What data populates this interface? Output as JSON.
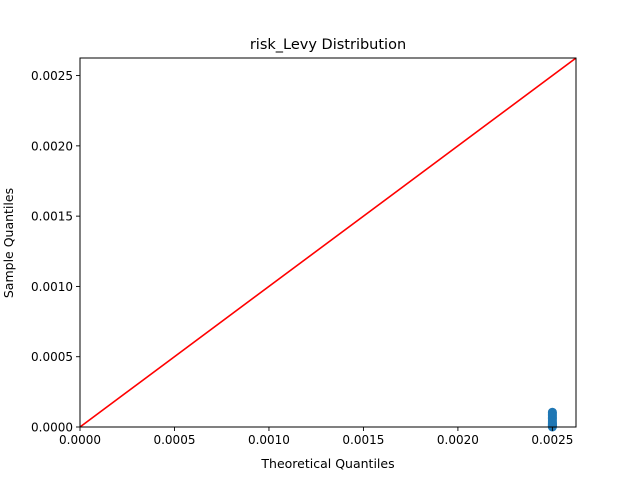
{
  "chart_data": {
    "type": "scatter",
    "title": "risk_Levy Distribution",
    "xlabel": "Theoretical Quantiles",
    "ylabel": "Sample Quantiles",
    "xlim": [
      0.0,
      0.002625
    ],
    "ylim": [
      0.0,
      0.002625
    ],
    "xticks": [
      {
        "value": 0.0,
        "label": "0.0000"
      },
      {
        "value": 0.0005,
        "label": "0.0005"
      },
      {
        "value": 0.001,
        "label": "0.0010"
      },
      {
        "value": 0.0015,
        "label": "0.0015"
      },
      {
        "value": 0.002,
        "label": "0.0020"
      },
      {
        "value": 0.0025,
        "label": "0.0025"
      }
    ],
    "yticks": [
      {
        "value": 0.0,
        "label": "0.0000"
      },
      {
        "value": 0.0005,
        "label": "0.0005"
      },
      {
        "value": 0.001,
        "label": "0.0010"
      },
      {
        "value": 0.0015,
        "label": "0.0015"
      },
      {
        "value": 0.002,
        "label": "0.0020"
      },
      {
        "value": 0.0025,
        "label": "0.0025"
      }
    ],
    "grid": false,
    "series": [
      {
        "kind": "points",
        "color": "#1f77b4",
        "x": [
          0.0025,
          0.0025,
          0.0025,
          0.0025,
          0.0025,
          0.0025,
          0.0025,
          0.0025,
          0.0025,
          0.0025,
          0.0025,
          0.0025,
          0.0025,
          0.0025,
          0.0025
        ],
        "y": [
          0.0,
          5e-06,
          1e-05,
          1.5e-05,
          2e-05,
          2.5e-05,
          3e-05,
          4e-05,
          5e-05,
          6e-05,
          7e-05,
          8e-05,
          9e-05,
          0.0001,
          0.000105
        ]
      },
      {
        "kind": "reference-line",
        "color": "#ff0000",
        "x": [
          0.0,
          0.002625
        ],
        "y": [
          0.0,
          0.002625
        ]
      }
    ]
  }
}
